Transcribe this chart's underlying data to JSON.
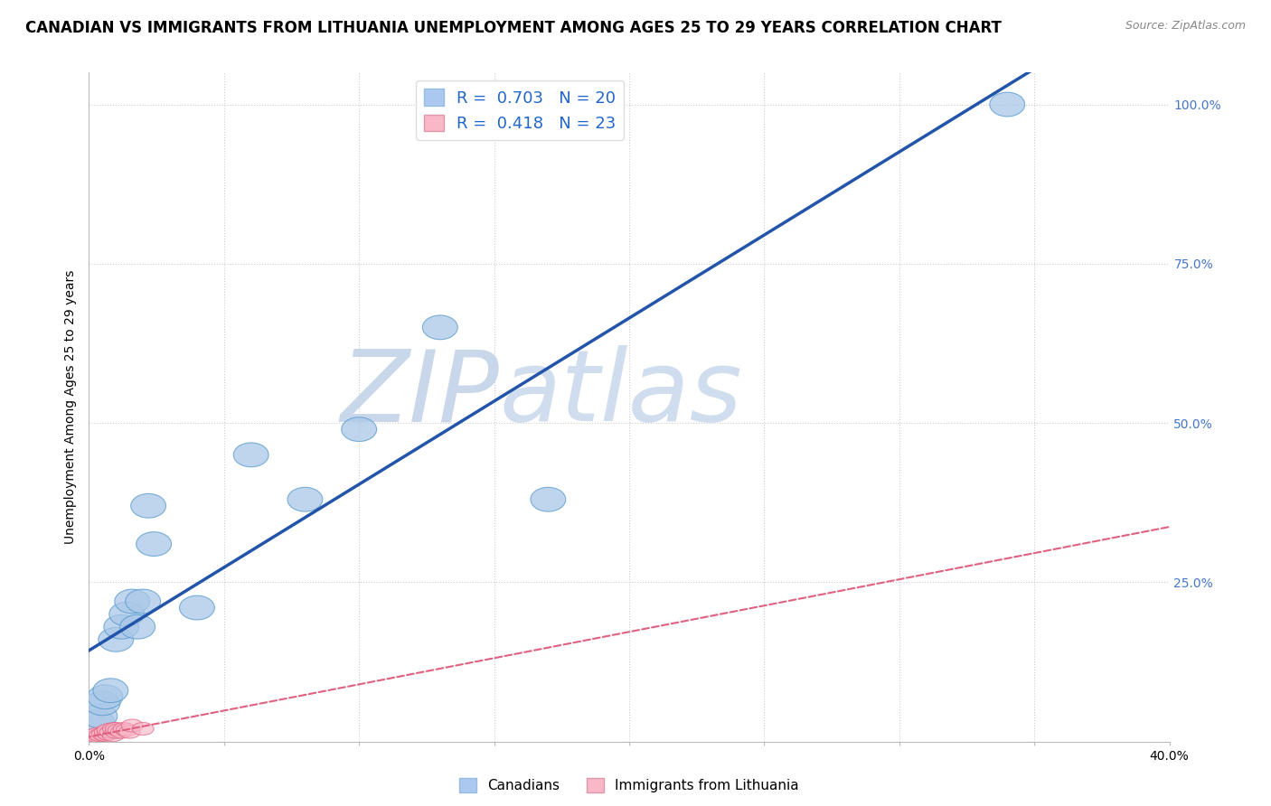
{
  "title": "CANADIAN VS IMMIGRANTS FROM LITHUANIA UNEMPLOYMENT AMONG AGES 25 TO 29 YEARS CORRELATION CHART",
  "source": "Source: ZipAtlas.com",
  "ylabel": "Unemployment Among Ages 25 to 29 years",
  "xlim": [
    0.0,
    0.4
  ],
  "ylim": [
    0.0,
    1.05
  ],
  "background_color": "#ffffff",
  "grid_color": "#cccccc",
  "watermark_zip": "ZIP",
  "watermark_atlas": "atlas",
  "watermark_color": "#d0dff0",
  "canadians": {
    "R": 0.703,
    "N": 20,
    "color": "#aac8e8",
    "edge_color": "#5599cc",
    "line_color": "#2255aa",
    "x": [
      0.003,
      0.004,
      0.005,
      0.006,
      0.008,
      0.01,
      0.012,
      0.014,
      0.016,
      0.018,
      0.02,
      0.022,
      0.024,
      0.04,
      0.06,
      0.08,
      0.1,
      0.13,
      0.17,
      0.34
    ],
    "y": [
      0.03,
      0.04,
      0.06,
      0.07,
      0.08,
      0.16,
      0.18,
      0.2,
      0.22,
      0.18,
      0.22,
      0.37,
      0.31,
      0.21,
      0.45,
      0.38,
      0.49,
      0.65,
      0.38,
      1.0
    ]
  },
  "lithuania": {
    "R": 0.418,
    "N": 23,
    "color": "#f8b8c8",
    "edge_color": "#e06080",
    "line_color": "#e06080",
    "x": [
      0.001,
      0.002,
      0.002,
      0.003,
      0.003,
      0.004,
      0.005,
      0.006,
      0.006,
      0.007,
      0.007,
      0.008,
      0.009,
      0.009,
      0.01,
      0.01,
      0.011,
      0.012,
      0.013,
      0.014,
      0.015,
      0.016,
      0.02
    ],
    "y": [
      0.005,
      0.005,
      0.01,
      0.008,
      0.012,
      0.01,
      0.012,
      0.01,
      0.015,
      0.012,
      0.018,
      0.015,
      0.01,
      0.02,
      0.015,
      0.02,
      0.018,
      0.015,
      0.02,
      0.018,
      0.015,
      0.025,
      0.02
    ]
  },
  "legend_box_color_canadians": "#aac8f0",
  "legend_box_color_lithuania": "#f8b8c8",
  "legend_text_color_RN": "#2266cc",
  "title_fontsize": 12,
  "axis_label_fontsize": 10,
  "tick_fontsize": 10,
  "legend_fontsize": 13
}
